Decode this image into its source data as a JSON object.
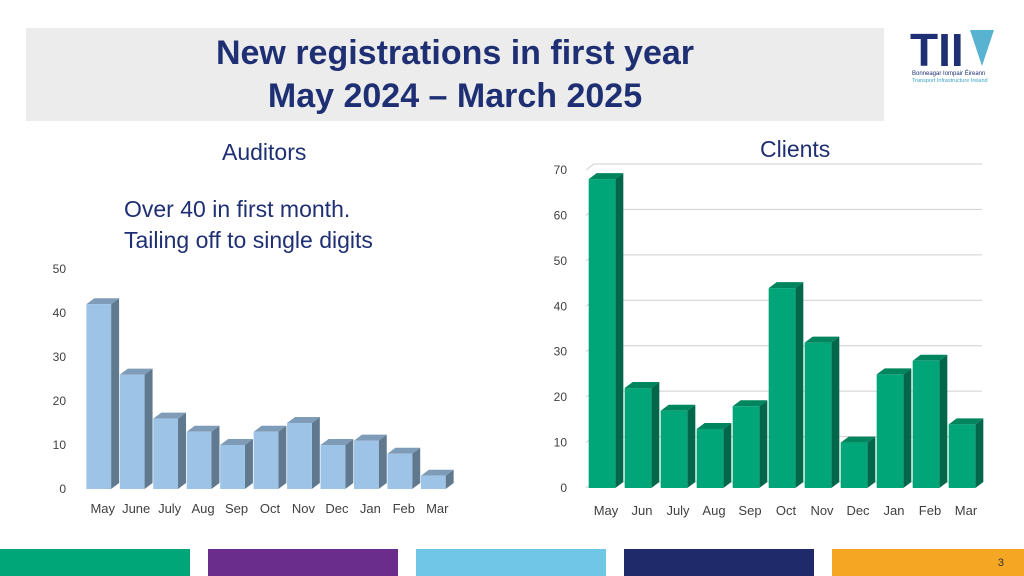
{
  "slide": {
    "title_line1": "New registrations in first year",
    "title_line2": "May 2024 – March 2025",
    "page_number": "3"
  },
  "logo": {
    "text": "TII",
    "line1": "Bonneagar Iompair Éireann",
    "line2": "Transport Infrastructure Ireland"
  },
  "auditors": {
    "heading": "Auditors",
    "note_line1": "Over 40 in first month.",
    "note_line2": "Tailing off to single digits"
  },
  "clients": {
    "heading": "Clients"
  },
  "colors": {
    "title_band": "#ececec",
    "title_text": "#1f2f73",
    "auditors_bar": "#9dc3e6",
    "clients_bar": "#00a677",
    "footer": [
      "#00a677",
      "#6b2d8b",
      "#70c6e6",
      "#1f2a6b",
      "#f5a623"
    ]
  },
  "chart_data": [
    {
      "type": "bar",
      "title": "Auditors",
      "categories": [
        "May",
        "June",
        "July",
        "Aug",
        "Sep",
        "Oct",
        "Nov",
        "Dec",
        "Jan",
        "Feb",
        "Mar"
      ],
      "values": [
        42,
        26,
        16,
        13,
        10,
        13,
        15,
        10,
        11,
        8,
        3
      ],
      "ylim": [
        0,
        50
      ],
      "yticks": [
        0,
        10,
        20,
        30,
        40,
        50
      ],
      "grid": false,
      "xlabel": "",
      "ylabel": ""
    },
    {
      "type": "bar",
      "title": "Clients",
      "categories": [
        "May",
        "Jun",
        "July",
        "Aug",
        "Sep",
        "Oct",
        "Nov",
        "Dec",
        "Jan",
        "Feb",
        "Mar"
      ],
      "values": [
        68,
        22,
        17,
        13,
        18,
        44,
        32,
        10,
        25,
        28,
        14
      ],
      "ylim": [
        0,
        70
      ],
      "yticks": [
        0,
        10,
        20,
        30,
        40,
        50,
        60,
        70
      ],
      "grid": true,
      "xlabel": "",
      "ylabel": ""
    }
  ]
}
